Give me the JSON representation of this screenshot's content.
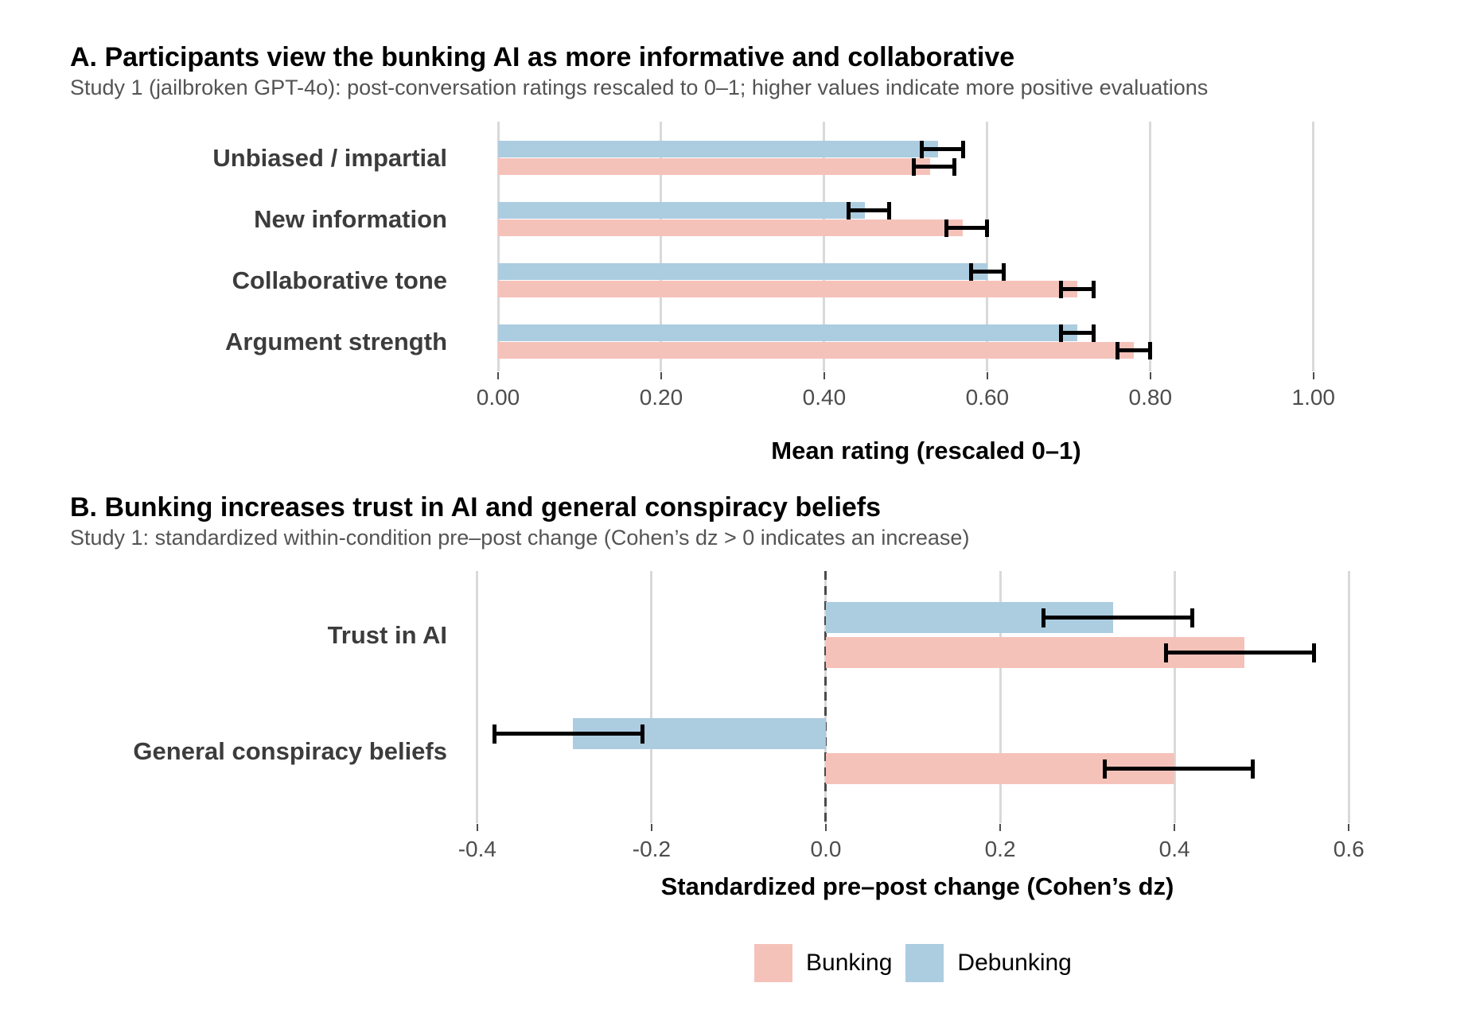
{
  "colors": {
    "background": "#FFFFFF",
    "bunking_pink": "#F5C2BA",
    "debunking_blue": "#ACCCE0",
    "gridline": "#D9D9D9",
    "zero_line": "#4A4A4A",
    "error_bar": "#000000",
    "tick_mark": "#4D4D4D",
    "tick_label_text": "#4D4D4D",
    "subtitle_text": "#545454",
    "category_label_text": "#3C3C3C",
    "title_text": "#000000"
  },
  "legend": {
    "position": "bottom-center",
    "items": [
      {
        "label": "Bunking",
        "color_key": "bunking_pink"
      },
      {
        "label": "Debunking",
        "color_key": "debunking_blue"
      }
    ]
  },
  "chart_data": [
    {
      "id": "panel-a",
      "type": "bar",
      "orientation": "horizontal",
      "title": "A. Participants view the bunking AI as more informative and collaborative",
      "subtitle": "Study 1 (jailbroken GPT-4o): post-conversation ratings rescaled to 0–1; higher values indicate more positive evaluations",
      "xlabel": "Mean rating (rescaled 0–1)",
      "categories": [
        "Unbiased / impartial",
        "New information",
        "Collaborative tone",
        "Argument strength"
      ],
      "series": [
        {
          "name": "Debunking",
          "color_key": "debunking_blue",
          "values": [
            0.54,
            0.45,
            0.6,
            0.71
          ],
          "ci_low": [
            0.52,
            0.43,
            0.58,
            0.69
          ],
          "ci_high": [
            0.57,
            0.48,
            0.62,
            0.73
          ]
        },
        {
          "name": "Bunking",
          "color_key": "bunking_pink",
          "values": [
            0.53,
            0.57,
            0.71,
            0.78
          ],
          "ci_low": [
            0.51,
            0.55,
            0.69,
            0.76
          ],
          "ci_high": [
            0.56,
            0.6,
            0.73,
            0.8
          ]
        }
      ],
      "xlim": [
        0,
        1.05
      ],
      "xticks": [
        0,
        0.2,
        0.4,
        0.6,
        0.8,
        1.0
      ],
      "xtick_labels": [
        "0.00",
        "0.20",
        "0.40",
        "0.60",
        "0.80",
        "1.00"
      ],
      "grid": true,
      "zero_line": false,
      "error_bars": true
    },
    {
      "id": "panel-b",
      "type": "bar",
      "orientation": "horizontal",
      "title": "B. Bunking increases trust in AI and general conspiracy beliefs",
      "subtitle": "Study 1: standardized within-condition pre–post change (Cohen’s dz > 0 indicates an increase)",
      "xlabel": "Standardized pre–post change (Cohen’s dz)",
      "categories": [
        "Trust in AI",
        "General conspiracy beliefs"
      ],
      "series": [
        {
          "name": "Debunking",
          "color_key": "debunking_blue",
          "values": [
            0.33,
            -0.29
          ],
          "ci_low": [
            0.25,
            -0.38
          ],
          "ci_high": [
            0.42,
            -0.21
          ]
        },
        {
          "name": "Bunking",
          "color_key": "bunking_pink",
          "values": [
            0.48,
            0.4
          ],
          "ci_low": [
            0.39,
            0.32
          ],
          "ci_high": [
            0.56,
            0.49
          ]
        }
      ],
      "xlim": [
        -0.44,
        0.65
      ],
      "xticks": [
        -0.4,
        -0.2,
        0,
        0.2,
        0.4,
        0.6
      ],
      "xtick_labels": [
        "-0.4",
        "-0.2",
        "0.0",
        "0.2",
        "0.4",
        "0.6"
      ],
      "grid": true,
      "zero_line": true,
      "error_bars": true
    }
  ]
}
